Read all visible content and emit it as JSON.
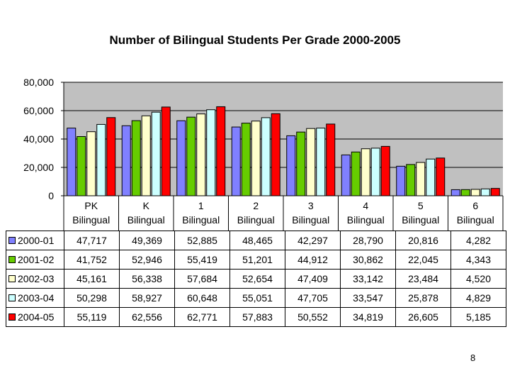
{
  "chart_data": {
    "type": "bar",
    "title": "Number of Bilingual Students Per Grade 2000-2005",
    "categories": [
      [
        "PK",
        "Bilingual"
      ],
      [
        "K",
        "Bilingual"
      ],
      [
        "1",
        "Bilingual"
      ],
      [
        "2",
        "Bilingual"
      ],
      [
        "3",
        "Bilingual"
      ],
      [
        "4",
        "Bilingual"
      ],
      [
        "5",
        "Bilingual"
      ],
      [
        "6",
        "Bilingual"
      ]
    ],
    "series": [
      {
        "name": "2000-01",
        "color": "#8080ff",
        "values": [
          47717,
          49369,
          52885,
          48465,
          42297,
          28790,
          20816,
          4282
        ],
        "labels": [
          "47,717",
          "49,369",
          "52,885",
          "48,465",
          "42,297",
          "28,790",
          "20,816",
          "4,282"
        ]
      },
      {
        "name": "2001-02",
        "color": "#66cc00",
        "values": [
          41752,
          52946,
          55419,
          51201,
          44912,
          30862,
          22045,
          4343
        ],
        "labels": [
          "41,752",
          "52,946",
          "55,419",
          "51,201",
          "44,912",
          "30,862",
          "22,045",
          "4,343"
        ]
      },
      {
        "name": "2002-03",
        "color": "#ffffcc",
        "values": [
          45161,
          56338,
          57684,
          52654,
          47409,
          33142,
          23484,
          4520
        ],
        "labels": [
          "45,161",
          "56,338",
          "57,684",
          "52,654",
          "47,409",
          "33,142",
          "23,484",
          "4,520"
        ]
      },
      {
        "name": "2003-04",
        "color": "#ccffff",
        "values": [
          50298,
          58927,
          60648,
          55051,
          47705,
          33547,
          25878,
          4829
        ],
        "labels": [
          "50,298",
          "58,927",
          "60,648",
          "55,051",
          "47,705",
          "33,547",
          "25,878",
          "4,829"
        ]
      },
      {
        "name": "2004-05",
        "color": "#ff0000",
        "values": [
          55119,
          62556,
          62771,
          57883,
          50552,
          34819,
          26605,
          5185
        ],
        "labels": [
          "55,119",
          "62,556",
          "62,771",
          "57,883",
          "50,552",
          "34,819",
          "26,605",
          "5,185"
        ]
      }
    ],
    "ylim": [
      0,
      80000
    ],
    "yticks": [
      0,
      20000,
      40000,
      60000,
      80000
    ],
    "ytick_labels": [
      "0",
      "20,000",
      "40,000",
      "60,000",
      "80,000"
    ],
    "grid": true,
    "plot_background": "#c0c0c0",
    "legend": "data-table"
  },
  "page_number": "8"
}
